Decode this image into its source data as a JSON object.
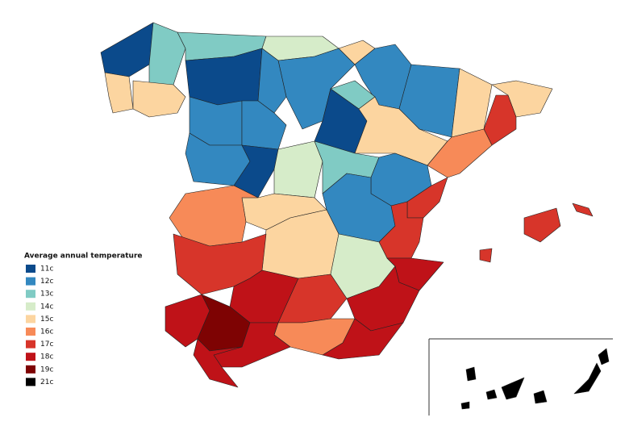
{
  "legend": {
    "title": "Average annual temperature",
    "items": [
      {
        "value": 11,
        "label": "11c",
        "color": "#0b4a8b"
      },
      {
        "value": 12,
        "label": "12c",
        "color": "#3388c0"
      },
      {
        "value": 13,
        "label": "13c",
        "color": "#80cbc4"
      },
      {
        "value": 14,
        "label": "14c",
        "color": "#d6ecc9"
      },
      {
        "value": 15,
        "label": "15c",
        "color": "#fcd5a0"
      },
      {
        "value": 16,
        "label": "16c",
        "color": "#f78a58"
      },
      {
        "value": 17,
        "label": "17c",
        "color": "#d7352a"
      },
      {
        "value": 18,
        "label": "18c",
        "color": "#bf1218"
      },
      {
        "value": 19,
        "label": "19c",
        "color": "#7e0303"
      },
      {
        "value": 21,
        "label": "21c",
        "color": "#000000"
      }
    ]
  },
  "regions": [
    11,
    13,
    15,
    15,
    13,
    11,
    14,
    15,
    12,
    12,
    12,
    12,
    12,
    13,
    11,
    12,
    15,
    15,
    15,
    17,
    16,
    12,
    11,
    14,
    13,
    12,
    17,
    12,
    15,
    16,
    17,
    15,
    14,
    18,
    17,
    18,
    17,
    18,
    16,
    18,
    18,
    19,
    18,
    18,
    17,
    17,
    17,
    21,
    21,
    21,
    21,
    21,
    21,
    21
  ]
}
